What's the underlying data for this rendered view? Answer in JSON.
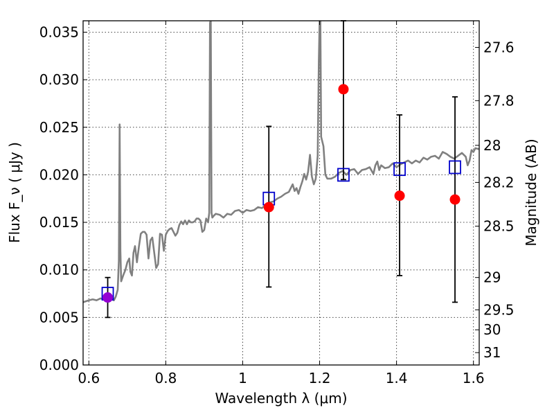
{
  "chart_data": {
    "type": "scatter",
    "title": "",
    "xlabel": "Wavelength  λ (μm)",
    "ylabel": "Flux  F_ν  ( μJy )",
    "y2label": "Magnitude (AB)",
    "xlim": [
      0.585,
      1.615
    ],
    "ylim": [
      0.0,
      0.0362
    ],
    "grid": true,
    "x_ticks": [
      {
        "value": 0.6,
        "label": "0.6"
      },
      {
        "value": 0.8,
        "label": "0.8"
      },
      {
        "value": 1.0,
        "label": "1"
      },
      {
        "value": 1.2,
        "label": "1.2"
      },
      {
        "value": 1.4,
        "label": "1.4"
      },
      {
        "value": 1.6,
        "label": "1.6"
      }
    ],
    "y_ticks": [
      {
        "value": 0.0,
        "label": "0.000"
      },
      {
        "value": 0.005,
        "label": "0.005"
      },
      {
        "value": 0.01,
        "label": "0.010"
      },
      {
        "value": 0.015,
        "label": "0.015"
      },
      {
        "value": 0.02,
        "label": "0.020"
      },
      {
        "value": 0.025,
        "label": "0.025"
      },
      {
        "value": 0.03,
        "label": "0.030"
      },
      {
        "value": 0.035,
        "label": "0.035"
      }
    ],
    "y2_ticks": [
      {
        "flux": 0.0334,
        "label": "27.6"
      },
      {
        "flux": 0.0278,
        "label": "27.8"
      },
      {
        "flux": 0.0231,
        "label": "28"
      },
      {
        "flux": 0.0192,
        "label": "28.2"
      },
      {
        "flux": 0.0146,
        "label": "28.5"
      },
      {
        "flux": 0.0092,
        "label": "29"
      },
      {
        "flux": 0.0058,
        "label": "29.5"
      },
      {
        "flux": 0.0037,
        "label": "30"
      },
      {
        "flux": 0.0013,
        "label": "31"
      }
    ],
    "series": [
      {
        "kind": "line",
        "color": "#808080",
        "points": [
          [
            0.585,
            0.0066
          ],
          [
            0.6,
            0.0068
          ],
          [
            0.61,
            0.0069
          ],
          [
            0.62,
            0.0068
          ],
          [
            0.63,
            0.007
          ],
          [
            0.64,
            0.0069
          ],
          [
            0.65,
            0.0072
          ],
          [
            0.66,
            0.007
          ],
          [
            0.665,
            0.0068
          ],
          [
            0.67,
            0.0072
          ],
          [
            0.675,
            0.0079
          ],
          [
            0.678,
            0.011
          ],
          [
            0.68,
            0.0253
          ],
          [
            0.682,
            0.012
          ],
          [
            0.684,
            0.0088
          ],
          [
            0.69,
            0.0095
          ],
          [
            0.695,
            0.01
          ],
          [
            0.7,
            0.0108
          ],
          [
            0.705,
            0.0112
          ],
          [
            0.708,
            0.0098
          ],
          [
            0.712,
            0.0094
          ],
          [
            0.716,
            0.0118
          ],
          [
            0.72,
            0.0125
          ],
          [
            0.725,
            0.0108
          ],
          [
            0.73,
            0.0124
          ],
          [
            0.735,
            0.0138
          ],
          [
            0.74,
            0.014
          ],
          [
            0.745,
            0.014
          ],
          [
            0.75,
            0.0137
          ],
          [
            0.755,
            0.0112
          ],
          [
            0.76,
            0.0131
          ],
          [
            0.765,
            0.0134
          ],
          [
            0.77,
            0.0118
          ],
          [
            0.775,
            0.0102
          ],
          [
            0.78,
            0.0106
          ],
          [
            0.785,
            0.0138
          ],
          [
            0.79,
            0.0137
          ],
          [
            0.795,
            0.012
          ],
          [
            0.8,
            0.0137
          ],
          [
            0.805,
            0.0141
          ],
          [
            0.81,
            0.0143
          ],
          [
            0.815,
            0.0144
          ],
          [
            0.82,
            0.014
          ],
          [
            0.825,
            0.0136
          ],
          [
            0.83,
            0.0139
          ],
          [
            0.835,
            0.0147
          ],
          [
            0.84,
            0.0151
          ],
          [
            0.845,
            0.0148
          ],
          [
            0.85,
            0.0152
          ],
          [
            0.855,
            0.0148
          ],
          [
            0.86,
            0.0152
          ],
          [
            0.865,
            0.015
          ],
          [
            0.87,
            0.015
          ],
          [
            0.875,
            0.0151
          ],
          [
            0.88,
            0.0154
          ],
          [
            0.885,
            0.0154
          ],
          [
            0.89,
            0.0152
          ],
          [
            0.895,
            0.014
          ],
          [
            0.9,
            0.0142
          ],
          [
            0.905,
            0.0154
          ],
          [
            0.91,
            0.015
          ],
          [
            0.913,
            0.016
          ],
          [
            0.915,
            0.036
          ],
          [
            0.917,
            0.0362
          ],
          [
            0.919,
            0.016
          ],
          [
            0.921,
            0.0155
          ],
          [
            0.925,
            0.0157
          ],
          [
            0.93,
            0.0159
          ],
          [
            0.94,
            0.0158
          ],
          [
            0.95,
            0.0155
          ],
          [
            0.96,
            0.0159
          ],
          [
            0.97,
            0.0158
          ],
          [
            0.98,
            0.0162
          ],
          [
            0.99,
            0.0163
          ],
          [
            1.0,
            0.016
          ],
          [
            1.01,
            0.0163
          ],
          [
            1.02,
            0.0162
          ],
          [
            1.03,
            0.0163
          ],
          [
            1.04,
            0.0166
          ],
          [
            1.05,
            0.0165
          ],
          [
            1.06,
            0.0168
          ],
          [
            1.07,
            0.0171
          ],
          [
            1.08,
            0.0172
          ],
          [
            1.09,
            0.0175
          ],
          [
            1.1,
            0.0177
          ],
          [
            1.11,
            0.018
          ],
          [
            1.12,
            0.0182
          ],
          [
            1.13,
            0.019
          ],
          [
            1.135,
            0.0183
          ],
          [
            1.14,
            0.0186
          ],
          [
            1.145,
            0.018
          ],
          [
            1.15,
            0.0187
          ],
          [
            1.155,
            0.0193
          ],
          [
            1.16,
            0.0201
          ],
          [
            1.165,
            0.0195
          ],
          [
            1.17,
            0.0203
          ],
          [
            1.175,
            0.0221
          ],
          [
            1.18,
            0.0198
          ],
          [
            1.185,
            0.019
          ],
          [
            1.19,
            0.0196
          ],
          [
            1.195,
            0.022
          ],
          [
            1.198,
            0.032
          ],
          [
            1.2,
            0.0362
          ],
          [
            1.202,
            0.0362
          ],
          [
            1.204,
            0.024
          ],
          [
            1.21,
            0.023
          ],
          [
            1.215,
            0.02
          ],
          [
            1.22,
            0.0196
          ],
          [
            1.23,
            0.0196
          ],
          [
            1.24,
            0.0198
          ],
          [
            1.25,
            0.0202
          ],
          [
            1.26,
            0.0204
          ],
          [
            1.27,
            0.02
          ],
          [
            1.28,
            0.0205
          ],
          [
            1.29,
            0.0206
          ],
          [
            1.3,
            0.0201
          ],
          [
            1.31,
            0.0205
          ],
          [
            1.32,
            0.0206
          ],
          [
            1.33,
            0.0208
          ],
          [
            1.34,
            0.0201
          ],
          [
            1.345,
            0.021
          ],
          [
            1.35,
            0.0214
          ],
          [
            1.355,
            0.0205
          ],
          [
            1.36,
            0.021
          ],
          [
            1.37,
            0.0207
          ],
          [
            1.38,
            0.0208
          ],
          [
            1.39,
            0.0212
          ],
          [
            1.4,
            0.0208
          ],
          [
            1.41,
            0.0211
          ],
          [
            1.42,
            0.0213
          ],
          [
            1.43,
            0.0215
          ],
          [
            1.44,
            0.0212
          ],
          [
            1.45,
            0.0215
          ],
          [
            1.46,
            0.0213
          ],
          [
            1.47,
            0.0218
          ],
          [
            1.48,
            0.0216
          ],
          [
            1.49,
            0.0219
          ],
          [
            1.5,
            0.022
          ],
          [
            1.51,
            0.0217
          ],
          [
            1.52,
            0.0224
          ],
          [
            1.53,
            0.0222
          ],
          [
            1.54,
            0.0219
          ],
          [
            1.55,
            0.0217
          ],
          [
            1.56,
            0.022
          ],
          [
            1.57,
            0.0223
          ],
          [
            1.58,
            0.0219
          ],
          [
            1.585,
            0.021
          ],
          [
            1.59,
            0.0215
          ],
          [
            1.595,
            0.0226
          ],
          [
            1.6,
            0.0224
          ],
          [
            1.605,
            0.0228
          ],
          [
            1.615,
            0.0227
          ]
        ]
      },
      {
        "kind": "markers",
        "marker": "square",
        "color": "#0000cc",
        "points": [
          [
            0.649,
            0.0075
          ],
          [
            1.068,
            0.0175
          ],
          [
            1.262,
            0.02
          ],
          [
            1.408,
            0.0206
          ],
          [
            1.552,
            0.0208
          ]
        ]
      },
      {
        "kind": "markers",
        "marker": "circle",
        "color": "#ff0000",
        "points": [
          [
            1.068,
            0.0166
          ],
          [
            1.262,
            0.029
          ],
          [
            1.408,
            0.0178
          ],
          [
            1.552,
            0.0174
          ]
        ]
      },
      {
        "kind": "markers",
        "marker": "circle",
        "color": "#9400d3",
        "points": [
          [
            0.649,
            0.0071
          ]
        ]
      },
      {
        "kind": "errorbars",
        "color": "#000000",
        "bars": [
          {
            "x": 0.649,
            "low": 0.005,
            "high": 0.0092
          },
          {
            "x": 1.068,
            "low": 0.0082,
            "high": 0.0251
          },
          {
            "x": 1.262,
            "low": 0.0195,
            "high": 0.0362
          },
          {
            "x": 1.408,
            "low": 0.0094,
            "high": 0.0263
          },
          {
            "x": 1.552,
            "low": 0.0066,
            "high": 0.0282
          }
        ]
      }
    ]
  }
}
